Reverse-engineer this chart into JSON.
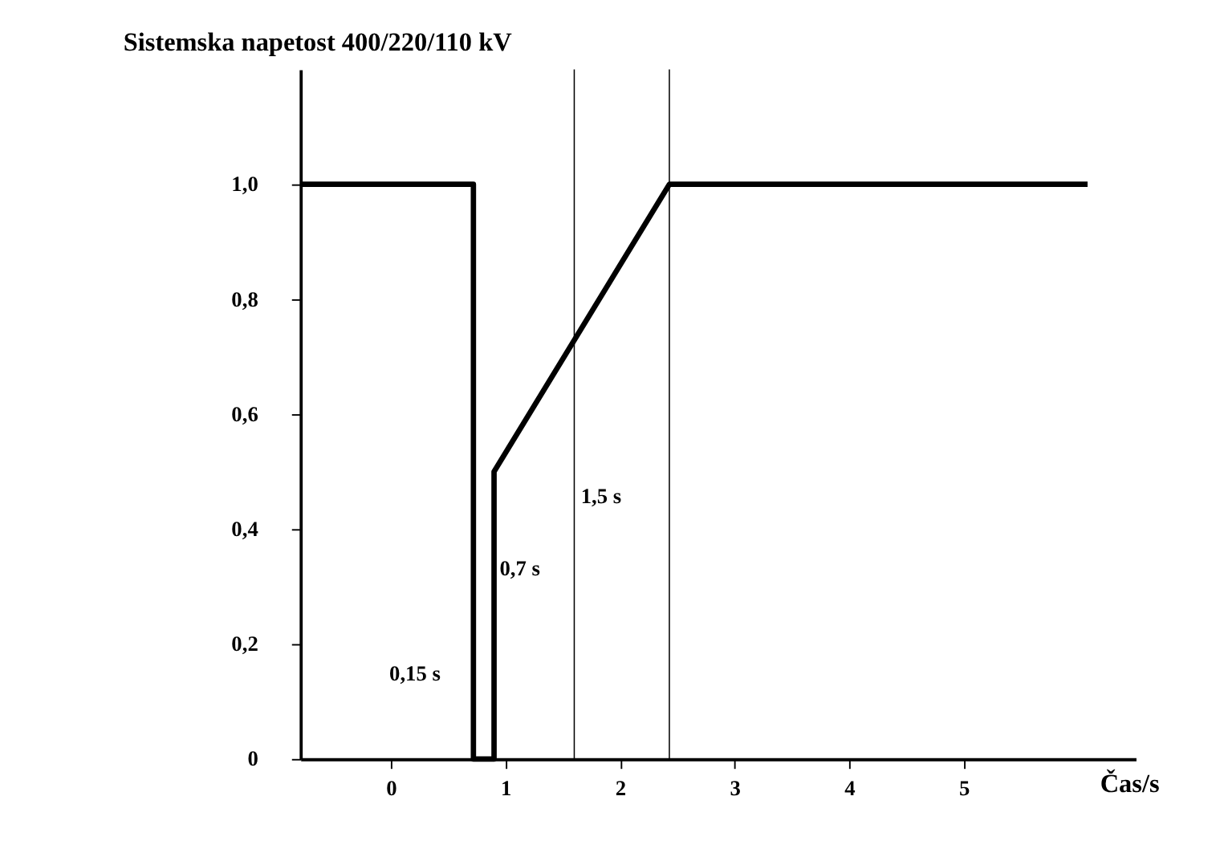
{
  "chart_data": {
    "type": "line",
    "title": "Sistemska napetost 400/220/110 kV",
    "xlabel": "Čas/s",
    "series": [
      {
        "color": "#000000",
        "x": [
          -0.79,
          0.72,
          0.72,
          0.9,
          0.9,
          2.43,
          6.08
        ],
        "values": [
          1.0,
          1.0,
          0,
          0,
          0.5,
          1.0,
          1.0
        ]
      }
    ],
    "xlim": [
      -0.79,
      6.5
    ],
    "ylim": [
      0,
      1.2
    ],
    "xticks": [
      0,
      1,
      2,
      3,
      4,
      5
    ],
    "yticks": [
      {
        "value": 0,
        "label": "0"
      },
      {
        "value": 0.2,
        "label": "0,2"
      },
      {
        "value": 0.4,
        "label": "0,4"
      },
      {
        "value": 0.6,
        "label": "0,6"
      },
      {
        "value": 0.8,
        "label": "0,8"
      },
      {
        "value": 1.0,
        "label": "1,0"
      }
    ],
    "ref_lines": [
      {
        "axis": "x",
        "value": 1.6,
        "color": "#000000"
      },
      {
        "axis": "x",
        "value": 2.43,
        "color": "#000000"
      }
    ],
    "annotations": [
      "0,15 s",
      "0,7 s",
      "1,5 s"
    ],
    "grid": false,
    "marker": "none",
    "line_style": "solid"
  }
}
